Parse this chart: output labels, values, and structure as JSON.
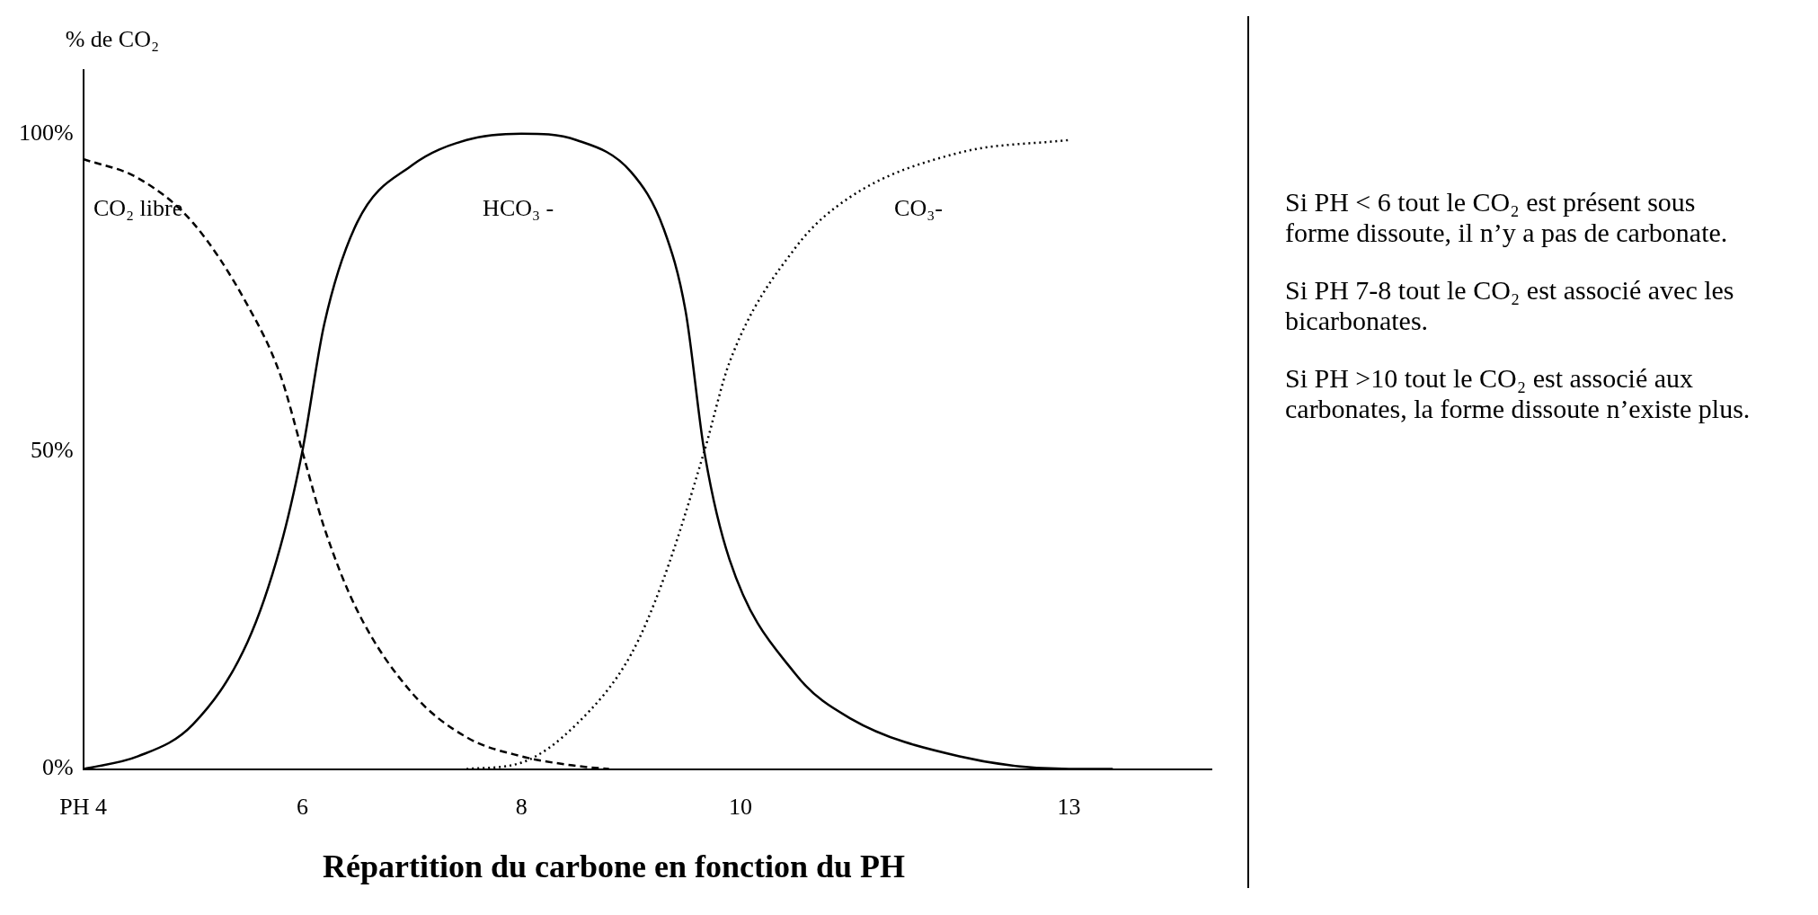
{
  "chart_data": {
    "type": "line",
    "title": "Répartition du carbone en fonction du PH",
    "ylabel": "% de CO₂",
    "xlim": [
      4,
      14.3
    ],
    "xticks": [
      {
        "value": 4,
        "label": "PH 4"
      },
      6,
      8,
      10,
      13
    ],
    "ylim": [
      0,
      110
    ],
    "yticks": [
      {
        "value": 0,
        "label": "0%"
      },
      {
        "value": 50,
        "label": "50%"
      },
      {
        "value": 100,
        "label": "100%"
      }
    ],
    "grid": false,
    "legend": false,
    "marker": "none",
    "series": [
      {
        "name": "CO₂ libre",
        "color": "#000000",
        "line_style": "dashed",
        "x": [
          4,
          4.5,
          5,
          5.5,
          5.8,
          6,
          6.2,
          6.5,
          7,
          7.5,
          8,
          8.5,
          8.8
        ],
        "values": [
          96,
          93,
          86,
          73,
          62,
          50,
          38,
          25,
          12,
          5,
          2,
          0.5,
          0
        ]
      },
      {
        "name": "HCO₃ -",
        "color": "#000000",
        "line_style": "solid",
        "x": [
          4,
          4.5,
          5,
          5.5,
          5.8,
          6,
          6.2,
          6.5,
          7,
          7.5,
          8,
          8.5,
          9,
          9.3,
          9.5,
          9.67,
          9.9,
          10.5,
          11,
          12,
          13,
          13.4
        ],
        "values": [
          0,
          2,
          7,
          20,
          35,
          50,
          70,
          86,
          95,
          99,
          100,
          99,
          94,
          85,
          72,
          50,
          33,
          15,
          8,
          2,
          0,
          0
        ]
      },
      {
        "name": "CO₃-",
        "color": "#000000",
        "line_style": "dotted",
        "x": [
          7.5,
          8,
          8.5,
          9,
          9.3,
          9.67,
          9.9,
          10.5,
          11,
          12,
          13
        ],
        "values": [
          0,
          1,
          7,
          18,
          30,
          50,
          64,
          82,
          90,
          97,
          99
        ]
      }
    ],
    "annotations": [
      "Si PH < 6 tout le CO₂ est présent sous forme dissoute, il n’y a pas de carbonate.",
      "Si PH 7-8 tout le CO₂ est associé avec les bicarbonates.",
      "Si PH >10 tout le CO₂ est associé aux carbonates, la forme dissoute n’existe plus."
    ]
  }
}
